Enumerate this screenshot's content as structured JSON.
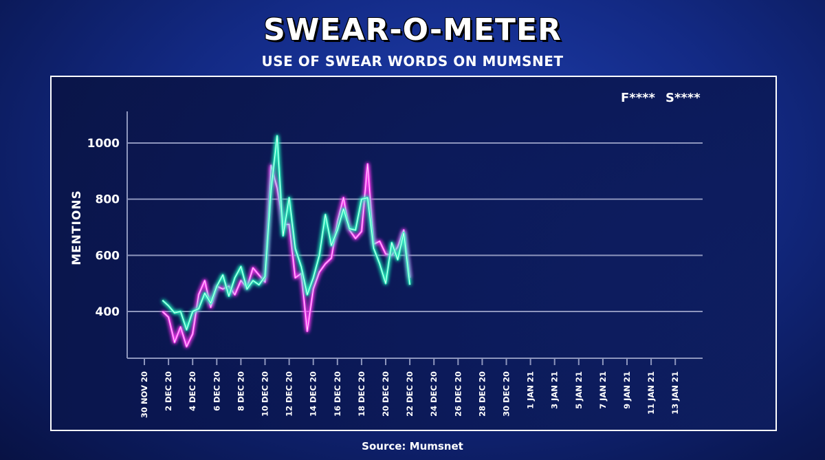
{
  "header": {
    "title": "SWEAR-O-METER",
    "subtitle": "USE OF SWEAR WORDS ON MUMSNET"
  },
  "footer": {
    "source": "Source: Mumsnet"
  },
  "colors": {
    "f_series": "#ff3df5",
    "s_series": "#2bf5c0"
  },
  "chart_data": {
    "type": "line",
    "title": "SWEAR-O-METER",
    "subtitle": "USE OF SWEAR WORDS ON MUMSNET",
    "xlabel": "",
    "ylabel": "MENTIONS",
    "ylim": [
      250,
      1100
    ],
    "yticks": [
      400,
      600,
      800,
      1000
    ],
    "grid": true,
    "legend_position": "top-right",
    "x_tick_labels": [
      "30 NOV 20",
      "2 DEC 20",
      "4 DEC 20",
      "6 DEC 20",
      "8 DEC 20",
      "10 DEC 20",
      "12 DEC 20",
      "14 DEC 20",
      "16 DEC 20",
      "18 DEC 20",
      "20 DEC 20",
      "22 DEC 20",
      "24 DEC 20",
      "26 DEC 20",
      "28 DEC 20",
      "30 DEC 20",
      "1 JAN 21",
      "3 JAN 21",
      "5 JAN 21",
      "7 JAN 21",
      "9 JAN 21",
      "11 JAN 21",
      "13 JAN 21"
    ],
    "x_day_start": 0,
    "x_day_step": 0.5,
    "series": [
      {
        "name": "F****",
        "values": [
          null,
          null,
          null,
          400,
          380,
          290,
          345,
          275,
          320,
          460,
          510,
          415,
          490,
          480,
          490,
          460,
          510,
          485,
          555,
          530,
          505,
          920,
          840,
          710,
          710,
          520,
          535,
          330,
          480,
          540,
          570,
          590,
          720,
          805,
          690,
          660,
          685,
          925,
          640,
          650,
          605,
          600,
          630,
          690,
          520
        ]
      },
      {
        "name": "S****",
        "values": [
          null,
          null,
          null,
          440,
          420,
          395,
          400,
          335,
          400,
          410,
          465,
          430,
          490,
          530,
          455,
          520,
          560,
          480,
          510,
          495,
          525,
          835,
          1025,
          670,
          805,
          625,
          560,
          460,
          520,
          600,
          745,
          635,
          690,
          765,
          695,
          690,
          800,
          805,
          625,
          570,
          500,
          645,
          585,
          680,
          495
        ]
      }
    ]
  }
}
